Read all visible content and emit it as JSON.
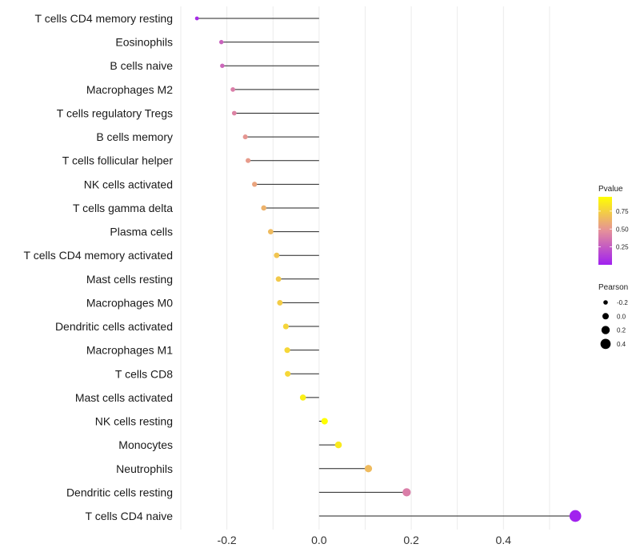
{
  "chart_data": {
    "type": "lollipop",
    "title": "",
    "xlabel": "",
    "ylabel": "",
    "xlim": [
      -0.3,
      0.58
    ],
    "x_ticks": [
      -0.2,
      0.0,
      0.2,
      0.4
    ],
    "x_tick_labels": [
      "-0.2",
      "0.0",
      "0.2",
      "0.4"
    ],
    "grid": true,
    "points": [
      {
        "label": "T cells CD4 memory resting",
        "value": -0.265,
        "pvalue": 0.05
      },
      {
        "label": "Eosinophils",
        "value": -0.212,
        "pvalue": 0.28
      },
      {
        "label": "B cells naive",
        "value": -0.21,
        "pvalue": 0.3
      },
      {
        "label": "Macrophages M2",
        "value": -0.187,
        "pvalue": 0.4
      },
      {
        "label": "T cells regulatory  Tregs ",
        "value": -0.184,
        "pvalue": 0.42
      },
      {
        "label": "B cells memory",
        "value": -0.16,
        "pvalue": 0.5
      },
      {
        "label": "T cells follicular helper",
        "value": -0.154,
        "pvalue": 0.52
      },
      {
        "label": "NK cells activated",
        "value": -0.14,
        "pvalue": 0.56
      },
      {
        "label": "T cells gamma delta",
        "value": -0.12,
        "pvalue": 0.62
      },
      {
        "label": "Plasma cells",
        "value": -0.105,
        "pvalue": 0.66
      },
      {
        "label": "T cells CD4 memory activated",
        "value": -0.092,
        "pvalue": 0.7
      },
      {
        "label": "Mast cells resting",
        "value": -0.088,
        "pvalue": 0.72
      },
      {
        "label": "Macrophages M0",
        "value": -0.085,
        "pvalue": 0.73
      },
      {
        "label": "Dendritic cells activated",
        "value": -0.072,
        "pvalue": 0.77
      },
      {
        "label": "Macrophages M1",
        "value": -0.069,
        "pvalue": 0.78
      },
      {
        "label": "T cells CD8",
        "value": -0.068,
        "pvalue": 0.78
      },
      {
        "label": "Mast cells activated",
        "value": -0.035,
        "pvalue": 0.88
      },
      {
        "label": "NK cells resting",
        "value": 0.012,
        "pvalue": 0.95
      },
      {
        "label": "Monocytes",
        "value": 0.042,
        "pvalue": 0.86
      },
      {
        "label": "Neutrophils",
        "value": 0.107,
        "pvalue": 0.66
      },
      {
        "label": "Dendritic cells resting",
        "value": 0.19,
        "pvalue": 0.4
      },
      {
        "label": "T cells CD4 naive",
        "value": 0.556,
        "pvalue": 0.01
      }
    ],
    "legend_pvalue": {
      "title": "Pvalue",
      "range": [
        0.0,
        0.95
      ],
      "ticks": [
        0.25,
        0.5,
        0.75
      ],
      "tick_labels": [
        "0.25",
        "0.50",
        "0.75"
      ],
      "color_low": "#a020f0",
      "color_mid": "#e5909a",
      "color_high": "#ffff00"
    },
    "legend_pearson": {
      "title": "Pearson",
      "values": [
        -0.2,
        0.0,
        0.2,
        0.4
      ],
      "labels": [
        "-0.2",
        "0.0",
        "0.2",
        "0.4"
      ]
    },
    "colors": {
      "segment": "#222222",
      "grid": "#ebebeb"
    }
  }
}
